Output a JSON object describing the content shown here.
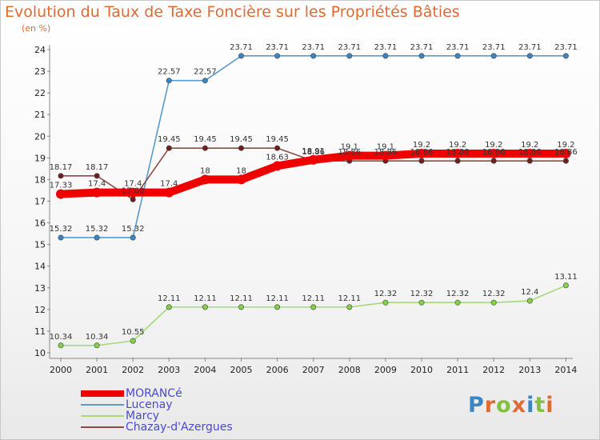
{
  "header": {
    "title": "Evolution du Taux de Taxe Foncière sur les Propriétés Bâties",
    "unit": "(en %)"
  },
  "chart_data": {
    "type": "line",
    "title": "Evolution du Taux de Taxe Foncière sur les Propriétés Bâties",
    "ylabel": "(en %)",
    "xlabel": "",
    "ylim": [
      10,
      24
    ],
    "yticks": [
      10,
      11,
      12,
      13,
      14,
      15,
      16,
      17,
      18,
      19,
      20,
      21,
      22,
      23,
      24
    ],
    "grid": false,
    "legend": "bottom-left",
    "x": [
      "2000",
      "2001",
      "2002",
      "2003",
      "2004",
      "2005",
      "2006",
      "2007",
      "2008",
      "2009",
      "2010",
      "2011",
      "2012",
      "2013",
      "2014"
    ],
    "series": [
      {
        "name": "Lucenay",
        "color": "#5b9bc9",
        "marker": "#3a86c4",
        "values": [
          15.32,
          15.32,
          15.32,
          22.57,
          22.57,
          23.71,
          23.71,
          23.71,
          23.71,
          23.71,
          23.71,
          23.71,
          23.71,
          23.71,
          23.71
        ],
        "labels": [
          "15.32",
          "15.32",
          "15.32",
          "22.57",
          "22.57",
          "23.71",
          "23.71",
          "23.71",
          "23.71",
          "23.71",
          "23.71",
          "23.71",
          "23.71",
          "23.71",
          "23.71"
        ]
      },
      {
        "name": "Marcy",
        "color": "#a5d97a",
        "marker": "#84d048",
        "values": [
          10.34,
          10.34,
          10.55,
          12.11,
          12.11,
          12.11,
          12.11,
          12.11,
          12.11,
          12.32,
          12.32,
          12.32,
          12.32,
          12.4,
          13.11
        ],
        "labels": [
          "10.34",
          "10.34",
          "10.55",
          "12.11",
          "12.11",
          "12.11",
          "12.11",
          "12.11",
          "12.11",
          "12.32",
          "12.32",
          "12.32",
          "12.32",
          "12.4",
          "13.11"
        ]
      },
      {
        "name": "Chazay-d'Azergues",
        "color": "#8a4a4a",
        "marker": "#6e1e1e",
        "values": [
          18.17,
          18.17,
          17.08,
          19.45,
          19.45,
          19.45,
          19.45,
          18.86,
          18.86,
          18.86,
          18.86,
          18.86,
          18.86,
          18.86,
          18.86
        ],
        "labels": [
          "18.17",
          "18.17",
          "17.08",
          "19.45",
          "19.45",
          "19.45",
          "19.45",
          "18.86",
          "18.86",
          "18.86",
          "18.86",
          "18.86",
          "18.86",
          "18.86",
          "18.86"
        ]
      },
      {
        "name": "MORANCé",
        "color": "#ee0000",
        "marker": "#ee0000",
        "values": [
          17.33,
          17.4,
          17.4,
          17.4,
          18.0,
          18.0,
          18.63,
          18.91,
          19.1,
          19.1,
          19.2,
          19.2,
          19.2,
          19.2,
          19.2
        ],
        "labels": [
          "17.33",
          "17.4",
          "17.4",
          "17.4",
          "18",
          "18",
          "18.63",
          "18.91",
          "19.1",
          "19.1",
          "19.2",
          "19.2",
          "19.2",
          "19.2",
          "19.2"
        ]
      }
    ]
  },
  "legend": [
    {
      "name": "MORANCé",
      "color": "#ee0000"
    },
    {
      "name": "Lucenay",
      "color": "#5b9bc9"
    },
    {
      "name": "Marcy",
      "color": "#a5d97a"
    },
    {
      "name": "Chazay-d'Azergues",
      "color": "#8a4a4a"
    }
  ],
  "logo": {
    "letters": [
      "P",
      "r",
      "o",
      "x",
      "i",
      "t",
      "i"
    ],
    "colors": [
      "#3a86c4",
      "#e06a34",
      "#84c040",
      "#e06a34",
      "#3a86c4",
      "#84c040",
      "#e06a34"
    ]
  }
}
